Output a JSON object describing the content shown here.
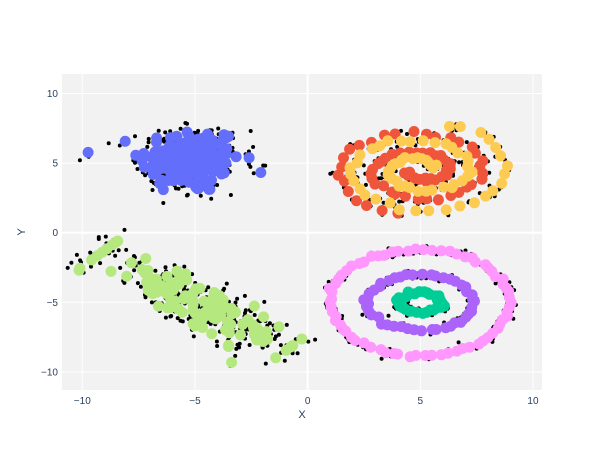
{
  "chart_data": {
    "type": "scatter",
    "xlabel": "X",
    "ylabel": "Y",
    "xlim": [
      -10.9,
      10.4
    ],
    "ylim": [
      -11.3,
      11.4
    ],
    "x_ticks": [
      -10,
      -5,
      0,
      5,
      10
    ],
    "y_ticks": [
      -10,
      -5,
      0,
      5,
      10
    ],
    "x_tick_labels": [
      "−10",
      "−5",
      "0",
      "5",
      "10"
    ],
    "y_tick_labels": [
      "−10",
      "−5",
      "0",
      "5",
      "10"
    ],
    "grid": true,
    "zero_lines": true,
    "colors": {
      "plot_background": "#f2f2f2",
      "grid": "#ffffff",
      "text": "#2a3f5f",
      "points": "#000000"
    },
    "series": [
      {
        "shape": "gaussian-blob",
        "color": "#636efa",
        "center": [
          -5.2,
          5.2
        ],
        "spread": [
          1.5,
          1.6
        ],
        "points": 160
      },
      {
        "shape": "elongated-blob",
        "color": "#b6e880",
        "start": [
          -9.2,
          -1.5
        ],
        "end": [
          -1.0,
          -8.5
        ],
        "spread_along": 1.9,
        "spread_across": 1.2,
        "points": 120
      },
      {
        "shape": "spiral",
        "color": "#ef553b",
        "center": [
          5.0,
          4.5
        ],
        "radius_x": [
          0.6,
          3.9
        ],
        "radius_y": [
          0.4,
          3.3
        ],
        "angle_start_deg": 200,
        "turns": 2.15,
        "points": 70
      },
      {
        "shape": "spiral",
        "color": "#fecb52",
        "center": [
          5.0,
          4.5
        ],
        "radius_x": [
          0.7,
          4.1
        ],
        "radius_y": [
          0.5,
          3.5
        ],
        "angle_start_deg": 20,
        "turns": 2.15,
        "points": 70
      },
      {
        "shape": "ring",
        "color": "#ff97ff",
        "center": [
          5.0,
          -5.0
        ],
        "radius_x": 4.0,
        "radius_y": 3.8,
        "points": 70
      },
      {
        "shape": "ring",
        "color": "#ab63fa",
        "center": [
          5.0,
          -5.0
        ],
        "radius_x": 2.4,
        "radius_y": 2.0,
        "points": 45
      },
      {
        "shape": "ring",
        "color": "#00cc96",
        "center": [
          5.0,
          -5.0
        ],
        "radius_x": 1.0,
        "radius_y": 0.7,
        "points": 30
      }
    ],
    "black_dots_per_point": 3
  }
}
